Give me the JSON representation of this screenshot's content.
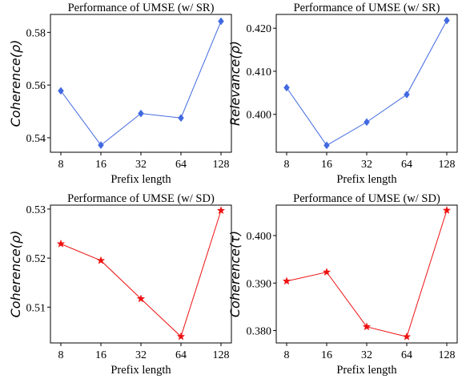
{
  "chart_data": [
    {
      "type": "line",
      "title": "Performance of UMSE (w/ SR)",
      "xlabel": "Prefix length",
      "ylabel": "Coherence(ρ)",
      "categories": [
        "8",
        "16",
        "32",
        "64",
        "128"
      ],
      "series": [
        {
          "values": [
            0.5578,
            0.5372,
            0.5492,
            0.5475,
            0.5842
          ]
        }
      ],
      "yticks": [
        0.54,
        0.56,
        0.58
      ],
      "ytick_labels": [
        "0.54",
        "0.56",
        "0.58"
      ],
      "ylim": [
        0.5345,
        0.5868
      ],
      "marker": "diamond",
      "color": "#4169e1"
    },
    {
      "type": "line",
      "title": "Performance of UMSE (w/ SR)",
      "xlabel": "Prefix length",
      "ylabel": "Relevance(ρ)",
      "categories": [
        "8",
        "16",
        "32",
        "64",
        "128"
      ],
      "series": [
        {
          "values": [
            0.4062,
            0.3928,
            0.3982,
            0.4046,
            0.4218
          ]
        }
      ],
      "yticks": [
        0.4,
        0.41,
        0.42
      ],
      "ytick_labels": [
        "0.400",
        "0.410",
        "0.420"
      ],
      "ylim": [
        0.3912,
        0.4232
      ],
      "marker": "diamond",
      "color": "#4169e1"
    },
    {
      "type": "line",
      "title": "Performance of UMSE (w/ SD)",
      "xlabel": "Prefix length",
      "ylabel": "Coherence(ρ)",
      "categories": [
        "8",
        "16",
        "32",
        "64",
        "128"
      ],
      "series": [
        {
          "values": [
            0.5229,
            0.5195,
            0.5117,
            0.504,
            0.5297
          ]
        }
      ],
      "yticks": [
        0.51,
        0.52,
        0.53
      ],
      "ytick_labels": [
        "0.51",
        "0.52",
        "0.53"
      ],
      "ylim": [
        0.5027,
        0.5308
      ],
      "marker": "star",
      "color": "#ee1111"
    },
    {
      "type": "line",
      "title": "Performance of UMSE (w/ SD)",
      "xlabel": "Prefix length",
      "ylabel": "Coherence(τ)",
      "categories": [
        "8",
        "16",
        "32",
        "64",
        "128"
      ],
      "series": [
        {
          "values": [
            0.3904,
            0.3923,
            0.3808,
            0.3787,
            0.4053
          ]
        }
      ],
      "yticks": [
        0.38,
        0.39,
        0.4
      ],
      "ytick_labels": [
        "0.380",
        "0.390",
        "0.400"
      ],
      "ylim": [
        0.3774,
        0.4064
      ],
      "marker": "star",
      "color": "#ee1111"
    }
  ]
}
